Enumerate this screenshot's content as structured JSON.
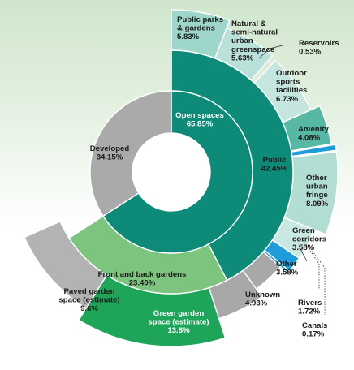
{
  "chart_data": {
    "type": "sunburst",
    "title": "",
    "total_percent": 100,
    "colors": {
      "open_spaces": "#0e8a78",
      "developed": "#a9aaa9",
      "gardens": "#7dc47f",
      "public_leaf": "#a9dbd1",
      "amenity": "#57b8a3",
      "blue": "#1e9bd8",
      "paved": "#b3b3b3",
      "green_garden": "#1fa55a",
      "gray_leaf": "#a8a8a8"
    },
    "inner_ring": [
      {
        "id": "open",
        "label": "Open spaces",
        "percent": "65.85%",
        "value": 65.85
      },
      {
        "id": "developed",
        "label": "Developed",
        "percent": "34.15%",
        "value": 34.15
      }
    ],
    "middle_ring": [
      {
        "id": "public",
        "label": "Public",
        "percent": "42.45%",
        "value": 42.45
      },
      {
        "id": "gardens",
        "label": "Front and back gardens",
        "percent": "23.40%",
        "value": 23.4
      }
    ],
    "outer_ring": [
      {
        "id": "parks",
        "label": "Public parks & gardens",
        "percent": "5.83%",
        "value": 5.83
      },
      {
        "id": "natural",
        "label": "Natural & semi-natural urban greenspace",
        "percent": "5.63%",
        "value": 5.63
      },
      {
        "id": "reservoirs",
        "label": "Reservoirs",
        "percent": "0.53%",
        "value": 0.53
      },
      {
        "id": "sports",
        "label": "Outdoor sports facilities",
        "percent": "6.73%",
        "value": 6.73
      },
      {
        "id": "amenity",
        "label": "Amenity",
        "percent": "4.08%",
        "value": 4.08
      },
      {
        "id": "other_urban",
        "label": "Other urban fringe",
        "percent": "8.09%",
        "value": 8.09
      },
      {
        "id": "green_corridors",
        "label": "Green corridors",
        "percent": "3.58%",
        "value": 3.58
      },
      {
        "id": "rivers",
        "label": "Rivers",
        "percent": "1.72%",
        "value": 1.72
      },
      {
        "id": "canals",
        "label": "Canals",
        "percent": "0.17%",
        "value": 0.17
      },
      {
        "id": "other",
        "label": "Other",
        "percent": "3.58%",
        "value": 3.58
      },
      {
        "id": "unknown",
        "label": "Unknown",
        "percent": "4.93%",
        "value": 4.93
      },
      {
        "id": "green_garden",
        "label": "Green garden space (estimate)",
        "percent": "13.8%",
        "value": 13.8
      },
      {
        "id": "paved_garden",
        "label": "Paved garden space (estimate)",
        "percent": "9.6%",
        "value": 9.6
      }
    ]
  }
}
